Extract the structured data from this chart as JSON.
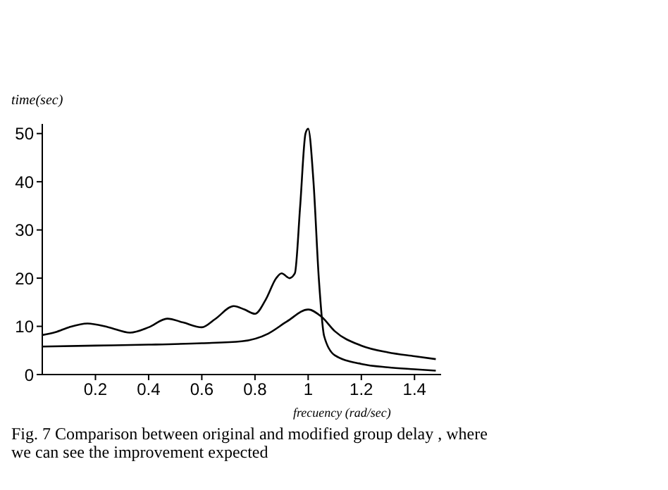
{
  "chart_data": {
    "type": "line",
    "ylabel": "time(sec)",
    "xlabel": "frecuency (rad/sec)",
    "xlim": [
      0,
      1.5
    ],
    "xticks": [
      0.2,
      0.4,
      0.6,
      0.8,
      1,
      1.2,
      1.4
    ],
    "ylim": [
      0,
      52
    ],
    "yticks": [
      0,
      10,
      20,
      30,
      40,
      50
    ],
    "grid": false,
    "marker": "none",
    "line_style": "solid",
    "series": [
      {
        "color": "#000000",
        "x": [
          0,
          0.05,
          0.1,
          0.17,
          0.25,
          0.33,
          0.4,
          0.47,
          0.53,
          0.6,
          0.65,
          0.72,
          0.76,
          0.8,
          0.84,
          0.88,
          0.9,
          0.93,
          0.95,
          0.97,
          0.99,
          1.0,
          1.02,
          1.04,
          1.06,
          1.1,
          1.2,
          1.3,
          1.4,
          1.48
        ],
        "values": [
          8.2,
          8.8,
          9.8,
          10.6,
          9.8,
          8.7,
          9.8,
          11.6,
          10.8,
          9.8,
          11.5,
          14.2,
          13.5,
          12.6,
          15.5,
          20,
          21,
          20,
          21,
          35,
          50,
          51,
          40,
          20,
          8,
          4,
          2.2,
          1.5,
          1.1,
          0.8
        ]
      },
      {
        "color": "#000000",
        "x": [
          0,
          0.2,
          0.4,
          0.6,
          0.75,
          0.85,
          0.92,
          1.0,
          1.05,
          1.1,
          1.2,
          1.3,
          1.4,
          1.48
        ],
        "values": [
          5.8,
          6.0,
          6.2,
          6.5,
          6.9,
          8.5,
          11,
          13.5,
          12,
          9,
          6,
          4.6,
          3.8,
          3.2
        ]
      }
    ],
    "annotations": [
      "Fig. 7 Comparison between original and modified group delay , where we can see the improvement expected"
    ]
  }
}
